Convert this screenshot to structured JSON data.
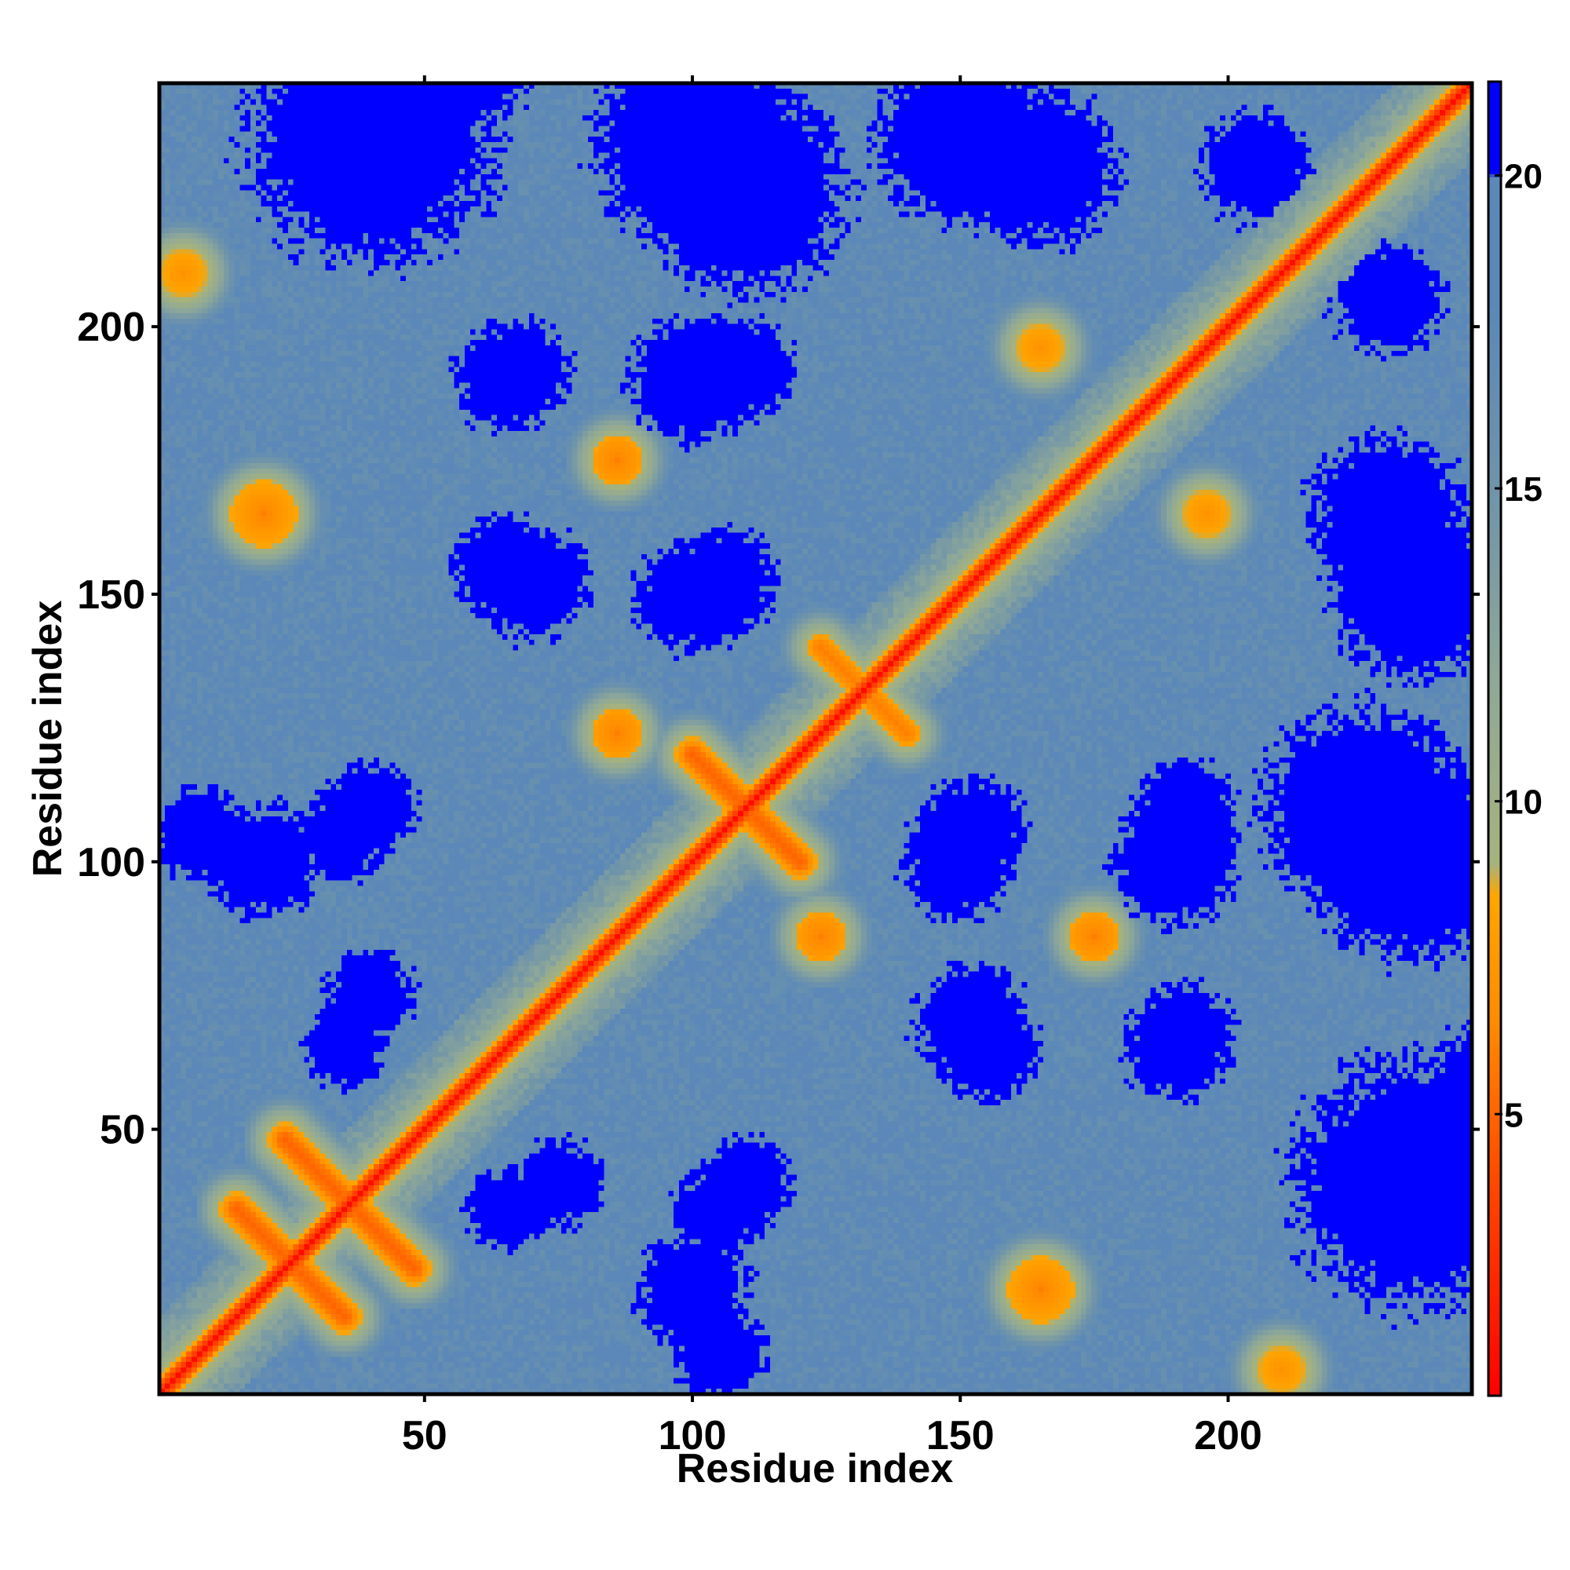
{
  "chart_data": {
    "type": "heatmap",
    "title": "",
    "xlabel": "Residue index",
    "ylabel": "Residue index",
    "n_residues": 245,
    "xlim": [
      1,
      245
    ],
    "ylim": [
      1,
      245
    ],
    "x_ticks": [
      50,
      100,
      150,
      200
    ],
    "y_ticks": [
      50,
      100,
      150,
      200
    ],
    "colorbar": {
      "range": [
        0.5,
        21.5
      ],
      "ticks": [
        5,
        10,
        15,
        20
      ],
      "stops": [
        {
          "value": 0.5,
          "color": "#ff0000"
        },
        {
          "value": 4.0,
          "color": "#ff4a00"
        },
        {
          "value": 6.5,
          "color": "#ff8c00"
        },
        {
          "value": 8.5,
          "color": "#ffa500"
        },
        {
          "value": 9.0,
          "color": "#a6b37d"
        },
        {
          "value": 12.0,
          "color": "#8fa898"
        },
        {
          "value": 15.0,
          "color": "#6f94aa"
        },
        {
          "value": 18.0,
          "color": "#5b88b8"
        },
        {
          "value": 20.0,
          "color": "#5b88b8"
        },
        {
          "value": 20.01,
          "color": "#0000ff"
        },
        {
          "value": 21.5,
          "color": "#0000ff"
        }
      ]
    },
    "contact_features": [
      {
        "type": "diagonal",
        "from": 1,
        "to": 245,
        "value": 1
      },
      {
        "type": "cross",
        "center": [
          25,
          25
        ],
        "half_length": 10,
        "value": 5
      },
      {
        "type": "cross",
        "center": [
          36,
          36
        ],
        "half_length": 12,
        "value": 5
      },
      {
        "type": "cross",
        "center": [
          110,
          110
        ],
        "half_length": 10,
        "value": 5
      },
      {
        "type": "cross",
        "center": [
          132,
          132
        ],
        "half_length": 8,
        "value": 6
      },
      {
        "type": "spot",
        "center": [
          165,
          20
        ],
        "radius": 6,
        "value": 6
      },
      {
        "type": "spot",
        "center": [
          20,
          165
        ],
        "radius": 6,
        "value": 6
      },
      {
        "type": "spot",
        "center": [
          210,
          5
        ],
        "radius": 5,
        "value": 7
      },
      {
        "type": "spot",
        "center": [
          5,
          210
        ],
        "radius": 5,
        "value": 7
      },
      {
        "type": "spot",
        "center": [
          86,
          175
        ],
        "radius": 4,
        "value": 6
      },
      {
        "type": "spot",
        "center": [
          175,
          86
        ],
        "radius": 4,
        "value": 6
      },
      {
        "type": "spot",
        "center": [
          196,
          165
        ],
        "radius": 5,
        "value": 7
      },
      {
        "type": "spot",
        "center": [
          165,
          196
        ],
        "radius": 5,
        "value": 7
      },
      {
        "type": "spot",
        "center": [
          124,
          86
        ],
        "radius": 4,
        "value": 6
      },
      {
        "type": "spot",
        "center": [
          86,
          124
        ],
        "radius": 4,
        "value": 6
      }
    ],
    "far_regions": [
      {
        "center": [
          60,
          255
        ],
        "radius": 14,
        "value": 21
      },
      {
        "center": [
          100,
          235
        ],
        "radius": 18,
        "value": 21
      },
      {
        "center": [
          150,
          235
        ],
        "radius": 15,
        "value": 21
      },
      {
        "center": [
          68,
          192
        ],
        "radius": 9,
        "value": 21
      },
      {
        "center": [
          110,
          192
        ],
        "radius": 9,
        "value": 21
      },
      {
        "center": [
          70,
          152
        ],
        "radius": 10,
        "value": 21
      },
      {
        "center": [
          105,
          152
        ],
        "radius": 10,
        "value": 21
      },
      {
        "center": [
          20,
          100
        ],
        "radius": 10,
        "value": 21
      },
      {
        "center": [
          35,
          105
        ],
        "radius": 8,
        "value": 21
      },
      {
        "center": [
          150,
          100
        ],
        "radius": 10,
        "value": 21
      },
      {
        "center": [
          190,
          100
        ],
        "radius": 11,
        "value": 21
      },
      {
        "center": [
          225,
          110
        ],
        "radius": 18,
        "value": 21
      },
      {
        "center": [
          235,
          40
        ],
        "radius": 22,
        "value": 21
      },
      {
        "center": [
          230,
          165
        ],
        "radius": 14,
        "value": 21
      },
      {
        "center": [
          230,
          205
        ],
        "radius": 10,
        "value": 21
      },
      {
        "center": [
          155,
          65
        ],
        "radius": 9,
        "value": 21
      },
      {
        "center": [
          190,
          65
        ],
        "radius": 9,
        "value": 21
      },
      {
        "center": [
          75,
          40
        ],
        "radius": 8,
        "value": 21
      },
      {
        "center": [
          110,
          40
        ],
        "radius": 8,
        "value": 21
      },
      {
        "center": [
          105,
          8
        ],
        "radius": 8,
        "value": 21
      },
      {
        "center": [
          35,
          65
        ],
        "radius": 7,
        "value": 21
      }
    ]
  }
}
